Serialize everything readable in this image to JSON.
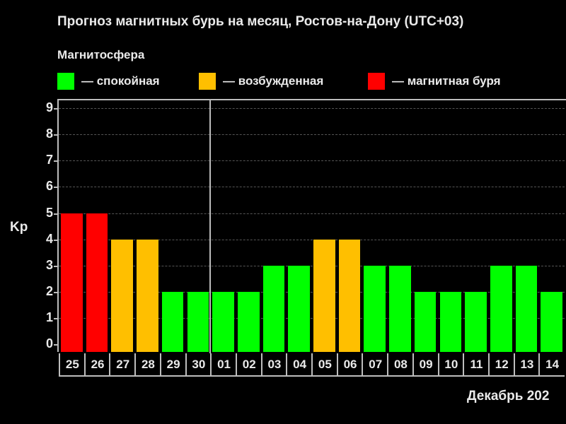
{
  "title": "Прогноз магнитных бурь на месяц, Ростов-на-Дону (UTC+03)",
  "legend": {
    "title": "Магнитосфера",
    "items": [
      {
        "label": "— спокойная",
        "color": "#00ff00"
      },
      {
        "label": "— возбужденная",
        "color": "#ffbf00"
      },
      {
        "label": "— магнитная буря",
        "color": "#ff0000"
      }
    ]
  },
  "colors": {
    "quiet": "#00ff00",
    "excited": "#ffbf00",
    "storm": "#ff0000",
    "background": "#000000",
    "axis": "#bdbdbd"
  },
  "month_label": "Декабрь 202",
  "chart_data": {
    "type": "bar",
    "title": "Прогноз магнитных бурь на месяц, Ростов-на-Дону (UTC+03)",
    "xlabel": "Декабрь 202",
    "ylabel": "Kp",
    "ylim": [
      0,
      9
    ],
    "yticks": [
      0,
      1,
      2,
      3,
      4,
      5,
      6,
      7,
      8,
      9
    ],
    "grid": true,
    "legend_position": "top",
    "legend": [
      "спокойная",
      "возбужденная",
      "магнитная буря"
    ],
    "categories": [
      "25",
      "26",
      "27",
      "28",
      "29",
      "30",
      "01",
      "02",
      "03",
      "04",
      "05",
      "06",
      "07",
      "08",
      "09",
      "10",
      "11",
      "12",
      "13",
      "14"
    ],
    "values": [
      5,
      5,
      4,
      4,
      2,
      2,
      2,
      2,
      3,
      3,
      4,
      4,
      3,
      3,
      2,
      2,
      2,
      3,
      3,
      2
    ],
    "status": [
      "storm",
      "storm",
      "excited",
      "excited",
      "quiet",
      "quiet",
      "quiet",
      "quiet",
      "quiet",
      "quiet",
      "excited",
      "excited",
      "quiet",
      "quiet",
      "quiet",
      "quiet",
      "quiet",
      "quiet",
      "quiet",
      "quiet"
    ],
    "annotations": [
      "month boundary between 30 and 01"
    ]
  }
}
